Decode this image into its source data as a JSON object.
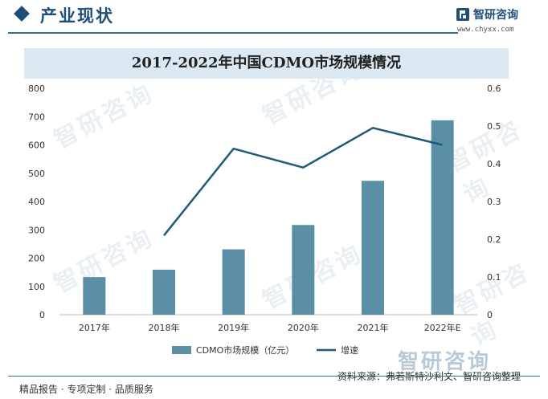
{
  "header": {
    "title": "产业现状",
    "logo_name": "智研咨询",
    "logo_url": "www.chyxx.com"
  },
  "watermark_text": "智研咨询",
  "chart_data": {
    "type": "bar",
    "title": "2017-2022年中国CDMO市场规模情况",
    "categories": [
      "2017年",
      "2018年",
      "2019年",
      "2020年",
      "2021年",
      "2022年E"
    ],
    "series": [
      {
        "name": "CDMO市场规模（亿元）",
        "type": "bar",
        "axis": "left",
        "color": "#5b8fa6",
        "values": [
          133,
          159,
          231,
          317,
          473,
          687
        ]
      },
      {
        "name": "增速",
        "type": "line",
        "axis": "right",
        "color": "#1f5a78",
        "values": [
          null,
          0.21,
          0.44,
          0.39,
          0.495,
          0.45
        ]
      }
    ],
    "y_left": {
      "min": 0,
      "max": 800,
      "ticks": [
        "0",
        "100",
        "200",
        "300",
        "400",
        "500",
        "600",
        "700",
        "800"
      ]
    },
    "y_right": {
      "min": 0,
      "max": 0.6,
      "ticks": [
        "0",
        "0.1",
        "0.2",
        "0.3",
        "0.4",
        "0.5",
        "0.6"
      ]
    },
    "legend_position": "bottom"
  },
  "footer": {
    "left": "精品报告 · 专项定制 · 品质服务",
    "source": "资料来源：弗若斯特沙利文、智研咨询整理",
    "brand": "智研咨询"
  }
}
